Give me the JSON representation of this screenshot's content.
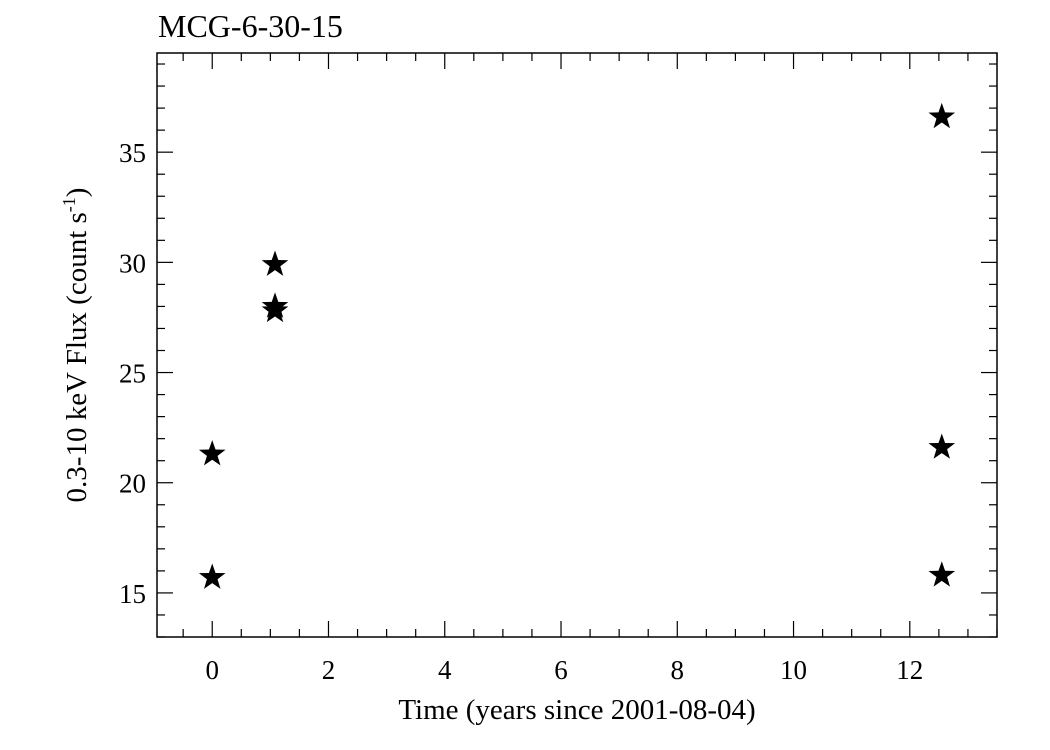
{
  "chart_data": {
    "type": "scatter",
    "title": "MCG-6-30-15",
    "xlabel": "Time (years since 2001-08-04)",
    "ylabel_main": "0.3-10 keV Flux (count s",
    "ylabel_sup": "-1",
    "ylabel_close": ")",
    "xlim": [
      -0.95,
      13.5
    ],
    "ylim": [
      13.0,
      39.5
    ],
    "x_ticks": [
      0,
      2,
      4,
      6,
      8,
      10,
      12
    ],
    "y_ticks": [
      15,
      20,
      25,
      30,
      35
    ],
    "x_minor_step": 0.5,
    "y_minor_step": 1,
    "grid": false,
    "marker": "star",
    "points": [
      {
        "x": 0.0,
        "y": 15.7
      },
      {
        "x": 0.0,
        "y": 21.3
      },
      {
        "x": 1.08,
        "y": 29.9
      },
      {
        "x": 1.08,
        "y": 28.0
      },
      {
        "x": 1.08,
        "y": 27.8
      },
      {
        "x": 12.55,
        "y": 36.6
      },
      {
        "x": 12.55,
        "y": 21.6
      },
      {
        "x": 12.55,
        "y": 15.8
      }
    ]
  }
}
